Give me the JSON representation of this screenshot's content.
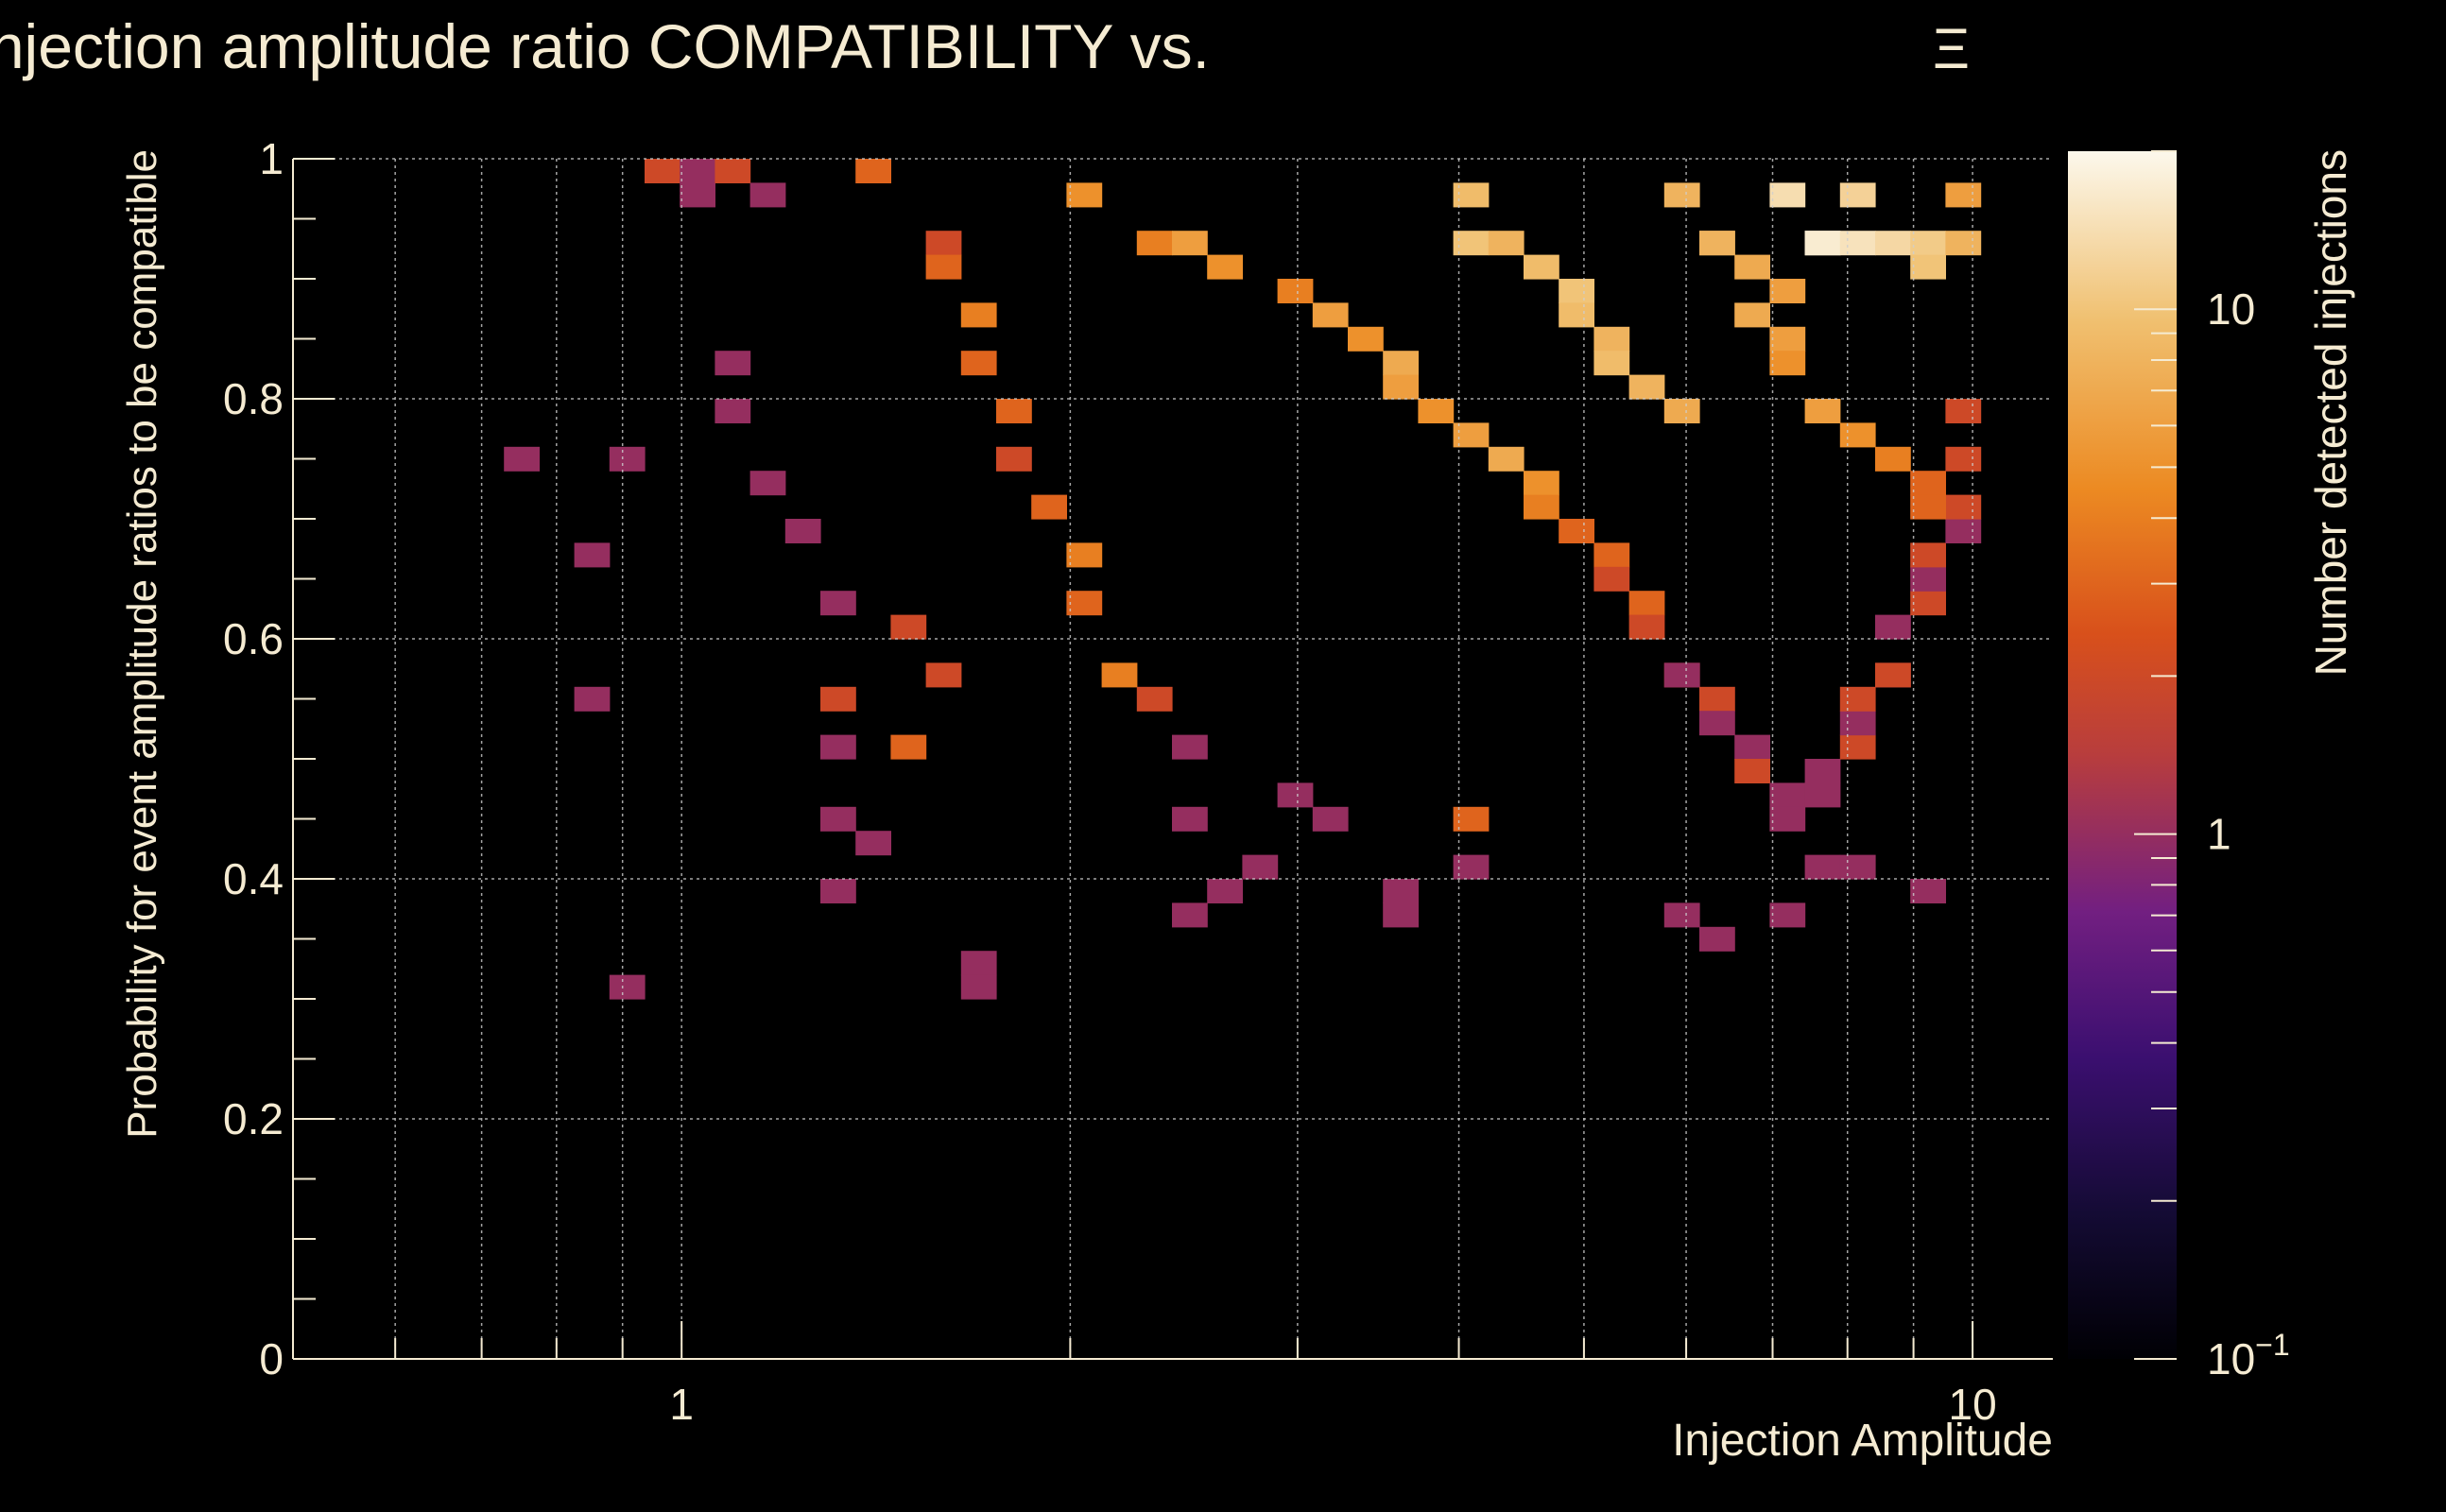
{
  "chart_data": {
    "type": "heatmap",
    "title": "Injection amplitude ratio COMPATIBILITY vs.",
    "title_symbol": "Ξ",
    "xlabel": "Injection Amplitude",
    "ylabel": "Probability for event amplitude ratios to be compatible",
    "zlabel": "Number detected injections",
    "x_scale": "log",
    "xlim": [
      0.5,
      11.5
    ],
    "ylim": [
      0,
      1
    ],
    "z_scale": "log",
    "zlim": [
      0.1,
      20
    ],
    "x_ticks": [
      {
        "value": 1,
        "label": "1"
      },
      {
        "value": 10,
        "label": "10"
      }
    ],
    "y_ticks": [
      {
        "value": 0,
        "label": "0"
      },
      {
        "value": 0.2,
        "label": "0.2"
      },
      {
        "value": 0.4,
        "label": "0.4"
      },
      {
        "value": 0.6,
        "label": "0.6"
      },
      {
        "value": 0.8,
        "label": "0.8"
      },
      {
        "value": 1,
        "label": "1"
      }
    ],
    "z_ticks": [
      {
        "value": 0.1,
        "label": "10",
        "exp": "−1"
      },
      {
        "value": 1,
        "label": "1"
      },
      {
        "value": 10,
        "label": "10"
      }
    ],
    "grid": true,
    "bins": {
      "x_count": 50,
      "y_count": 50
    },
    "cells": [
      [
        0.96,
        1.0,
        2
      ],
      [
        1.0,
        1.0,
        1
      ],
      [
        1.05,
        0.96,
        1
      ],
      [
        1.1,
        0.98,
        2
      ],
      [
        1.15,
        0.96,
        1
      ],
      [
        0.73,
        0.74,
        1
      ],
      [
        0.91,
        0.74,
        1
      ],
      [
        0.87,
        0.66,
        1
      ],
      [
        0.87,
        0.54,
        1
      ],
      [
        0.92,
        0.31,
        1
      ],
      [
        1.08,
        0.82,
        1
      ],
      [
        1.12,
        0.78,
        1
      ],
      [
        1.2,
        0.72,
        1
      ],
      [
        1.25,
        0.68,
        1
      ],
      [
        1.3,
        0.62,
        1
      ],
      [
        1.3,
        0.54,
        2
      ],
      [
        1.35,
        0.5,
        1
      ],
      [
        1.35,
        0.44,
        1
      ],
      [
        1.4,
        0.42,
        1
      ],
      [
        1.3,
        0.38,
        1
      ],
      [
        1.5,
        0.6,
        2
      ],
      [
        1.5,
        0.5,
        3
      ],
      [
        1.6,
        0.56,
        2
      ],
      [
        1.7,
        0.33,
        1
      ],
      [
        1.7,
        0.31,
        1
      ],
      [
        1.45,
        0.98,
        3
      ],
      [
        1.55,
        0.94,
        2
      ],
      [
        1.6,
        0.9,
        3
      ],
      [
        1.7,
        0.86,
        4
      ],
      [
        1.75,
        0.82,
        3
      ],
      [
        1.8,
        0.78,
        3
      ],
      [
        1.85,
        0.74,
        2
      ],
      [
        1.9,
        0.7,
        3
      ],
      [
        2.0,
        0.66,
        4
      ],
      [
        2.1,
        0.62,
        3
      ],
      [
        2.2,
        0.58,
        4
      ],
      [
        2.3,
        0.54,
        2
      ],
      [
        2.4,
        0.5,
        1
      ],
      [
        2.5,
        0.44,
        1
      ],
      [
        2.6,
        0.38,
        1
      ],
      [
        2.5,
        0.36,
        1
      ],
      [
        2.8,
        0.4,
        1
      ],
      [
        3.0,
        0.46,
        1
      ],
      [
        3.2,
        0.44,
        1
      ],
      [
        3.5,
        0.38,
        1
      ],
      [
        3.7,
        0.36,
        1
      ],
      [
        4.0,
        0.44,
        3
      ],
      [
        4.2,
        0.4,
        1
      ],
      [
        6.0,
        0.36,
        1
      ],
      [
        6.3,
        0.34,
        1
      ],
      [
        7.0,
        0.36,
        1
      ],
      [
        7.5,
        0.4,
        1
      ],
      [
        8.0,
        0.4,
        1
      ],
      [
        9.0,
        0.38,
        1
      ],
      [
        2.1,
        0.96,
        5
      ],
      [
        2.3,
        0.94,
        4
      ],
      [
        2.5,
        0.92,
        6
      ],
      [
        2.7,
        0.9,
        5
      ],
      [
        2.9,
        0.88,
        4
      ],
      [
        3.1,
        0.86,
        6
      ],
      [
        3.3,
        0.84,
        5
      ],
      [
        3.5,
        0.82,
        7
      ],
      [
        3.7,
        0.8,
        6
      ],
      [
        3.9,
        0.78,
        5
      ],
      [
        4.1,
        0.76,
        6
      ],
      [
        4.3,
        0.74,
        7
      ],
      [
        4.5,
        0.72,
        5
      ],
      [
        4.7,
        0.7,
        4
      ],
      [
        4.9,
        0.68,
        3
      ],
      [
        5.1,
        0.66,
        3
      ],
      [
        5.3,
        0.64,
        2
      ],
      [
        5.5,
        0.62,
        3
      ],
      [
        5.7,
        0.6,
        2
      ],
      [
        5.9,
        0.58,
        2
      ],
      [
        6.1,
        0.56,
        1
      ],
      [
        6.3,
        0.54,
        2
      ],
      [
        6.5,
        0.52,
        1
      ],
      [
        6.7,
        0.5,
        1
      ],
      [
        6.9,
        0.48,
        2
      ],
      [
        7.1,
        0.46,
        1
      ],
      [
        7.3,
        0.44,
        1
      ],
      [
        7.5,
        0.46,
        1
      ],
      [
        7.7,
        0.48,
        1
      ],
      [
        7.9,
        0.5,
        2
      ],
      [
        8.1,
        0.52,
        1
      ],
      [
        8.3,
        0.54,
        2
      ],
      [
        8.5,
        0.56,
        1
      ],
      [
        8.7,
        0.58,
        2
      ],
      [
        8.9,
        0.6,
        1
      ],
      [
        9.1,
        0.62,
        2
      ],
      [
        9.3,
        0.64,
        1
      ],
      [
        9.5,
        0.66,
        2
      ],
      [
        9.7,
        0.68,
        1
      ],
      [
        9.9,
        0.7,
        2
      ],
      [
        4.0,
        0.96,
        9
      ],
      [
        4.2,
        0.94,
        10
      ],
      [
        4.4,
        0.92,
        8
      ],
      [
        4.6,
        0.9,
        9
      ],
      [
        4.8,
        0.88,
        10
      ],
      [
        5.0,
        0.86,
        9
      ],
      [
        5.2,
        0.84,
        8
      ],
      [
        5.4,
        0.82,
        9
      ],
      [
        5.6,
        0.8,
        8
      ],
      [
        5.8,
        0.78,
        7
      ],
      [
        6.0,
        0.96,
        8
      ],
      [
        6.2,
        0.94,
        9
      ],
      [
        6.5,
        0.92,
        8
      ],
      [
        6.8,
        0.9,
        7
      ],
      [
        7.0,
        0.88,
        6
      ],
      [
        7.2,
        0.96,
        14
      ],
      [
        7.5,
        0.94,
        18
      ],
      [
        7.8,
        0.92,
        17
      ],
      [
        8.1,
        0.94,
        15
      ],
      [
        8.4,
        0.96,
        12
      ],
      [
        8.7,
        0.92,
        13
      ],
      [
        9.0,
        0.94,
        11
      ],
      [
        9.3,
        0.9,
        10
      ],
      [
        9.6,
        0.92,
        8
      ],
      [
        9.9,
        0.96,
        6
      ],
      [
        6.6,
        0.86,
        7
      ],
      [
        7.0,
        0.84,
        6
      ],
      [
        7.4,
        0.82,
        5
      ],
      [
        7.8,
        0.78,
        6
      ],
      [
        8.2,
        0.76,
        5
      ],
      [
        8.6,
        0.74,
        4
      ],
      [
        9.0,
        0.72,
        3
      ],
      [
        9.4,
        0.7,
        3
      ],
      [
        9.8,
        0.74,
        2
      ],
      [
        10.1,
        0.78,
        2
      ]
    ]
  }
}
